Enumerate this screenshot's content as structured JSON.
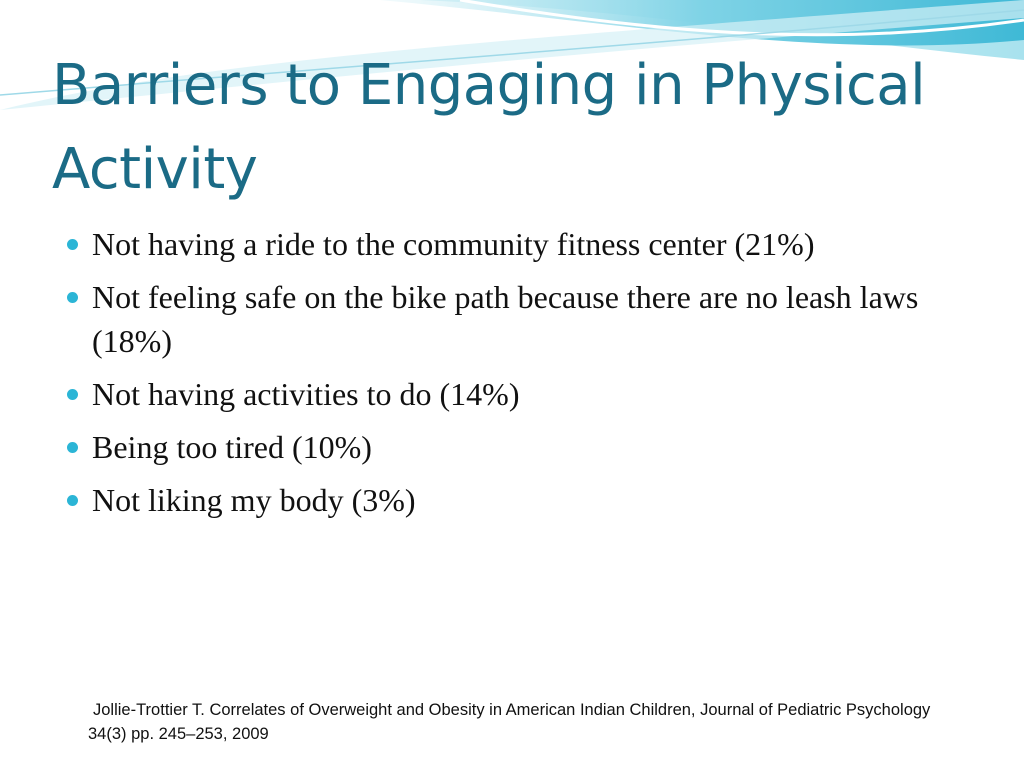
{
  "title": "Barriers to Engaging in Physical Activity",
  "bullets": [
    "Not having a ride to the community fitness center (21%)",
    "Not feeling safe on the bike path because there are no leash laws (18%)",
    "Not having activities to do (14%)",
    "Being too tired (10%)",
    "Not liking my body (3%)"
  ],
  "citation": "Jollie-Trottier T.  Correlates of Overweight and Obesity in American Indian Children, Journal of Pediatric Psychology 34(3) pp. 245–253, 2009"
}
